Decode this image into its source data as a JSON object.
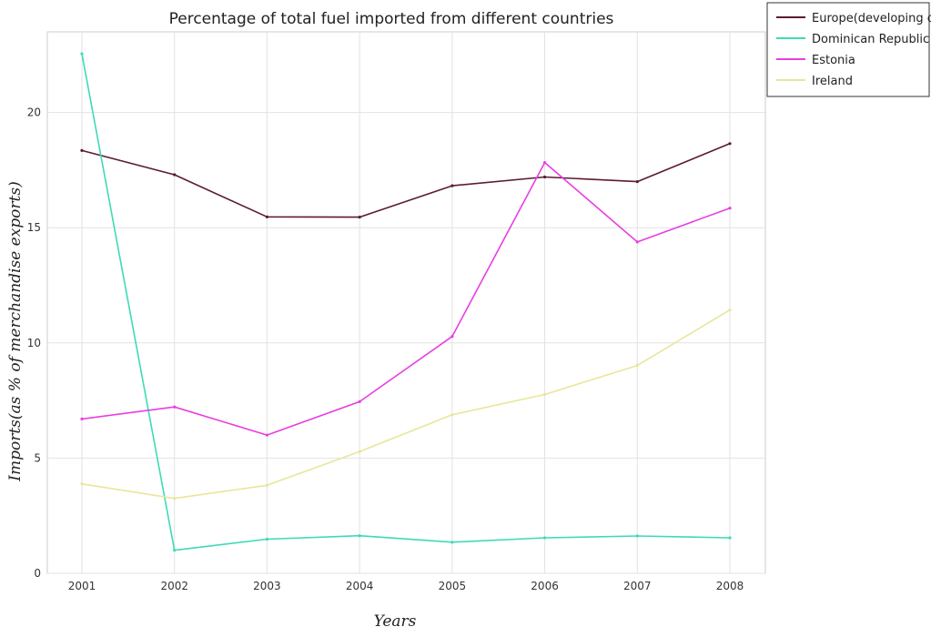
{
  "chart_data": {
    "type": "line",
    "title": "Percentage of total fuel imported from different countries",
    "xlabel": "Years",
    "ylabel": "Imports(as % of merchandise exports)",
    "categories": [
      "2001",
      "2002",
      "2003",
      "2004",
      "2005",
      "2006",
      "2007",
      "2008"
    ],
    "ylim": [
      0,
      23.5
    ],
    "yticks": [
      "0",
      "5",
      "10",
      "15",
      "20"
    ],
    "ytick_values": [
      0,
      5,
      10,
      15,
      20
    ],
    "grid": true,
    "legend_position": "top-right",
    "series": [
      {
        "name": "Europe(developing only)",
        "color": "#5c1a33",
        "values": [
          18.35,
          17.3,
          15.47,
          15.46,
          16.82,
          17.2,
          17.0,
          18.65
        ]
      },
      {
        "name": "Dominican Republic",
        "color": "#3ddbb5",
        "values": [
          22.55,
          1.0,
          1.48,
          1.63,
          1.35,
          1.54,
          1.62,
          1.54
        ]
      },
      {
        "name": "Estonia",
        "color": "#e83ee2",
        "values": [
          6.7,
          7.22,
          6.0,
          7.45,
          10.28,
          17.83,
          14.38,
          15.85
        ]
      },
      {
        "name": "Ireland",
        "color": "#e8e69a",
        "values": [
          3.88,
          3.25,
          3.82,
          5.28,
          6.88,
          7.76,
          9.02,
          11.43
        ]
      }
    ]
  }
}
